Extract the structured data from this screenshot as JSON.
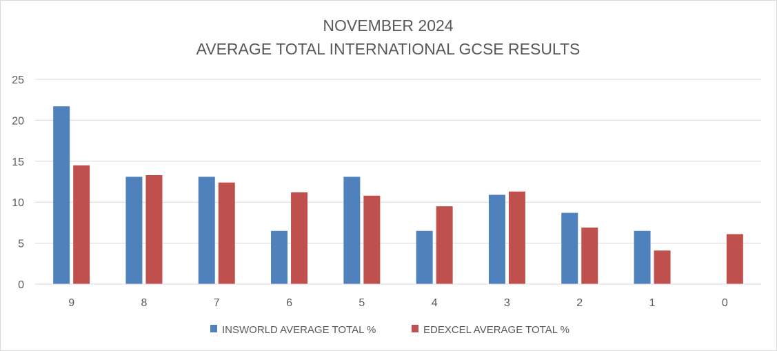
{
  "chart_data": {
    "type": "bar",
    "title_lines": [
      "NOVEMBER 2024",
      "AVERAGE TOTAL INTERNATIONAL GCSE RESULTS"
    ],
    "categories": [
      "9",
      "8",
      "7",
      "6",
      "5",
      "4",
      "3",
      "2",
      "1",
      "0"
    ],
    "series": [
      {
        "name": "INSWORLD AVERAGE TOTAL %",
        "color": "#4f81bd",
        "values": [
          21.7,
          13.1,
          13.1,
          6.5,
          13.1,
          6.5,
          10.9,
          8.7,
          6.5,
          0
        ]
      },
      {
        "name": "EDEXCEL AVERAGE TOTAL %",
        "color": "#c0504d",
        "values": [
          14.5,
          13.3,
          12.4,
          11.2,
          10.8,
          9.5,
          11.3,
          6.9,
          4.1,
          6.1
        ]
      }
    ],
    "ylim": [
      0,
      25
    ],
    "yticks": [
      0,
      5,
      10,
      15,
      20,
      25
    ],
    "grid": true,
    "gridline_color": "#d9d9d9",
    "legend_position": "bottom"
  }
}
